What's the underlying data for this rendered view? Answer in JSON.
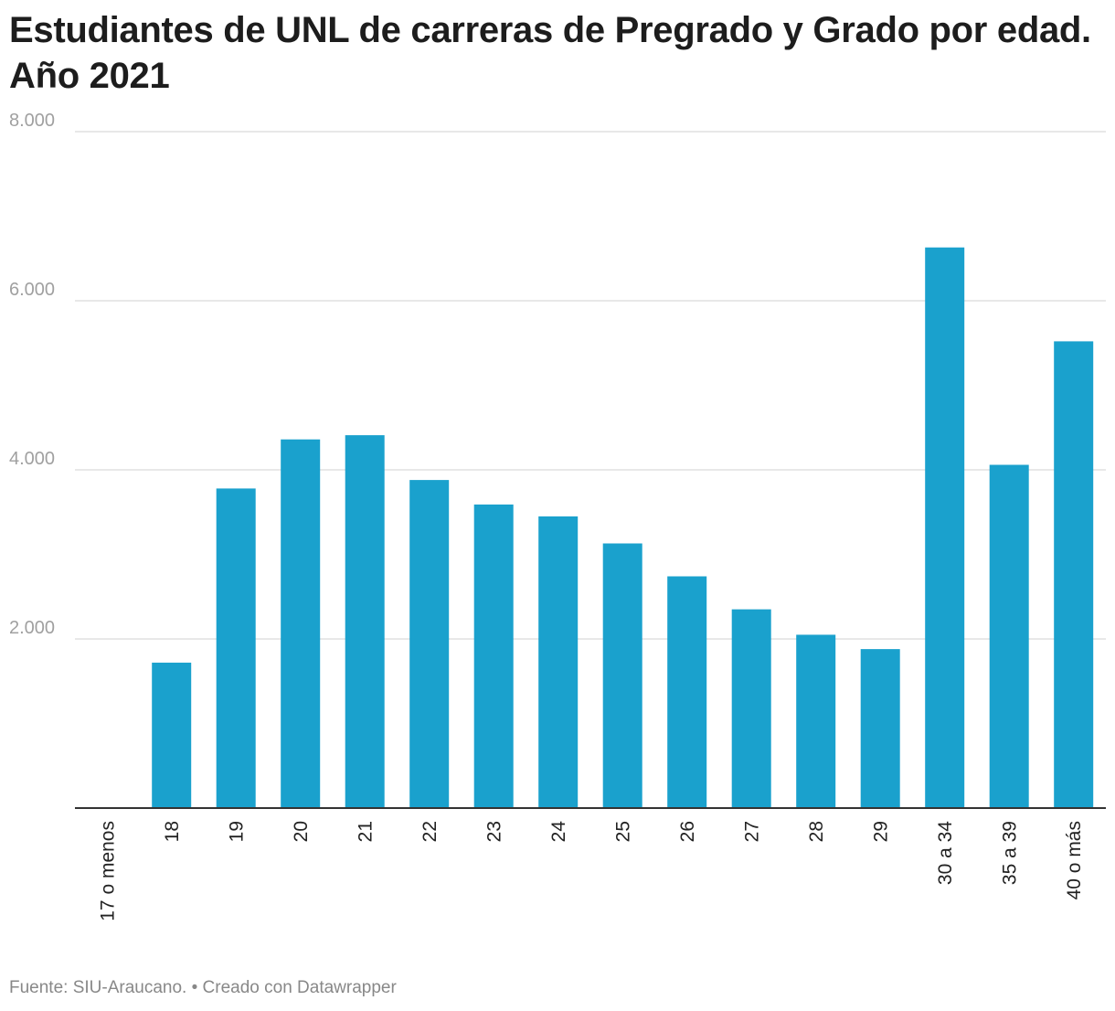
{
  "footer": {
    "source_text": "Fuente: SIU-Araucano. • Creado con Datawrapper"
  },
  "chart_data": {
    "type": "bar",
    "title": "Estudiantes de UNL de carreras de Pregrado y Grado por edad. Año 2021",
    "xlabel": "",
    "ylabel": "",
    "categories": [
      "17 o menos",
      "18",
      "19",
      "20",
      "21",
      "22",
      "23",
      "24",
      "25",
      "26",
      "27",
      "28",
      "29",
      "30 a 34",
      "35 a 39",
      "40 o más"
    ],
    "values": [
      0,
      1720,
      3780,
      4360,
      4410,
      3880,
      3590,
      3450,
      3130,
      2740,
      2350,
      2050,
      1880,
      6630,
      4060,
      5520
    ],
    "ylim": [
      0,
      8000
    ],
    "yticks": [
      2000,
      4000,
      6000,
      8000
    ],
    "ytick_labels": [
      "2.000",
      "4.000",
      "6.000",
      "8.000"
    ],
    "grid": true,
    "bar_color": "#1aa1cd",
    "grid_color": "#e0e0e0",
    "axis_color": "#333333"
  }
}
